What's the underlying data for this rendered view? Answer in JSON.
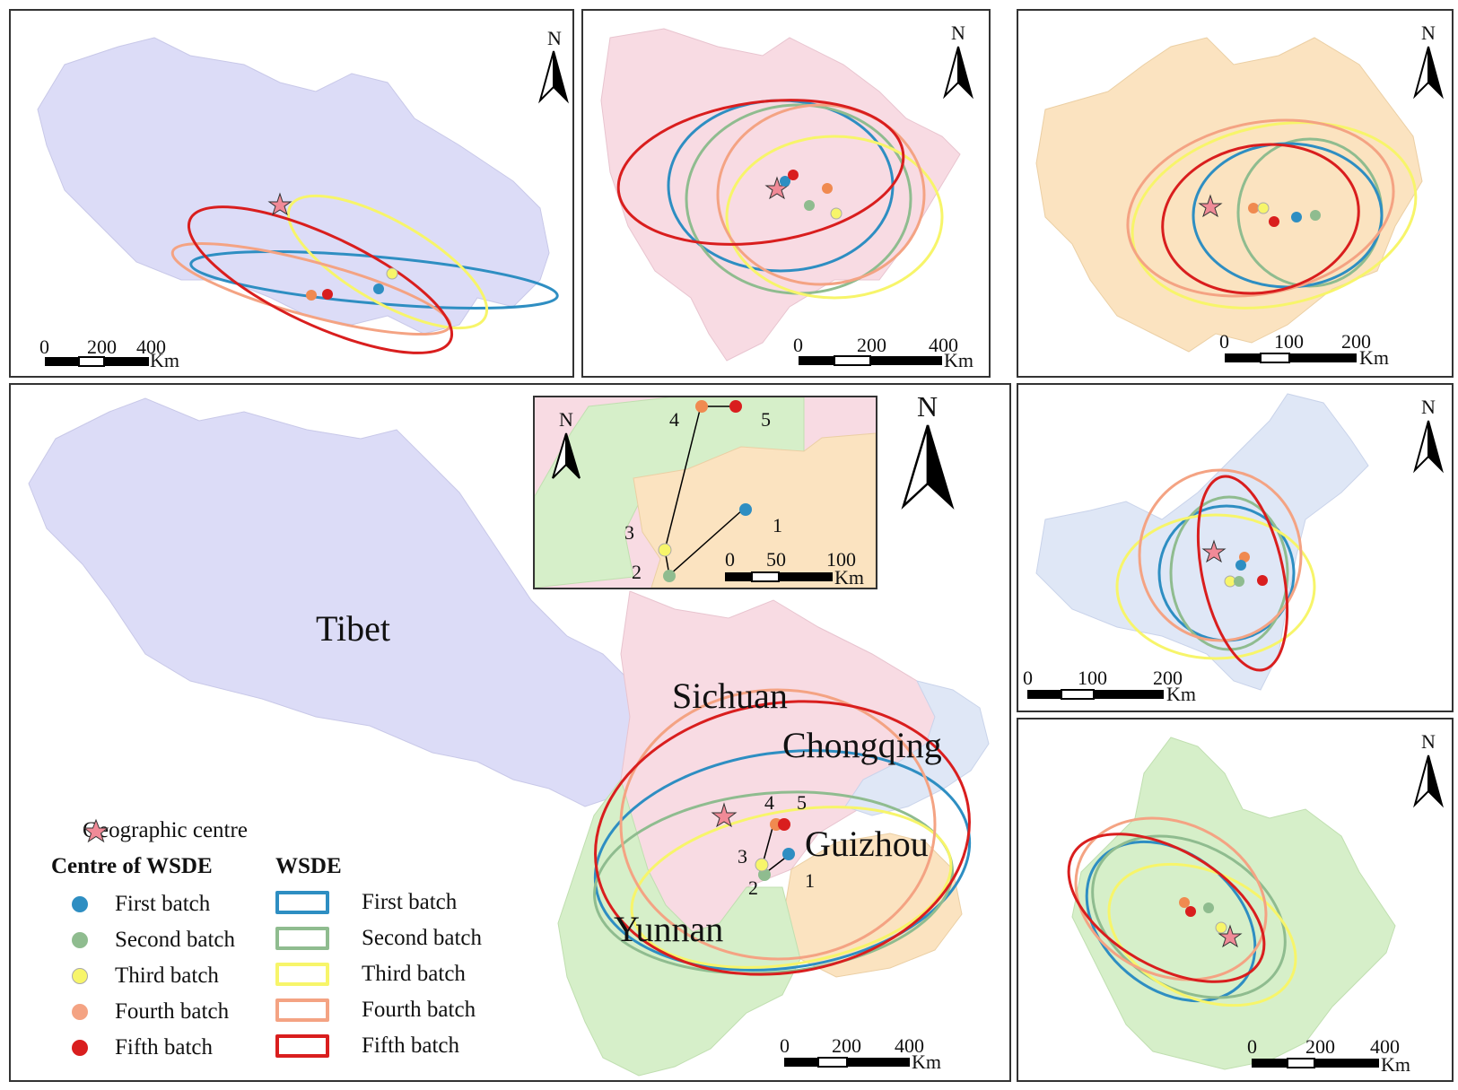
{
  "colors": {
    "first": "#2e8ec2",
    "second": "#8fbc8f",
    "third": "#f7f56a",
    "fourth": "#f4a383",
    "fifth": "#d91e1e",
    "star": "#f08a97",
    "tibet": "#dcdcf7",
    "sichuan": "#f8dbe3",
    "guizhou": "#fbe3c0",
    "chongqing": "#dfe7f6",
    "yunnan": "#d6efc9"
  },
  "icons": {
    "north_arrow": "north-arrow-icon",
    "centre": "star-icon"
  },
  "panels": {
    "tibet": {
      "north": "N",
      "scale": {
        "ticks": [
          "0",
          "200",
          "400"
        ],
        "unit": "Km"
      }
    },
    "sichuan": {
      "north": "N",
      "scale": {
        "ticks": [
          "0",
          "200",
          "400"
        ],
        "unit": "Km"
      }
    },
    "guizhou": {
      "north": "N",
      "scale": {
        "ticks": [
          "0",
          "100",
          "200"
        ],
        "unit": "Km"
      }
    },
    "chongqing": {
      "north": "N",
      "scale": {
        "ticks": [
          "0",
          "100",
          "200"
        ],
        "unit": "Km"
      }
    },
    "yunnan": {
      "north": "N",
      "scale": {
        "ticks": [
          "0",
          "200",
          "400"
        ],
        "unit": "Km"
      }
    },
    "main": {
      "north": "N",
      "scale": {
        "ticks": [
          "0",
          "200",
          "400"
        ],
        "unit": "Km"
      },
      "regions": [
        "Tibet",
        "Sichuan",
        "Chongqing",
        "Guizhou",
        "Yunnan"
      ],
      "path_labels": [
        "1",
        "2",
        "3",
        "4",
        "5"
      ]
    },
    "inset": {
      "north": "N",
      "scale": {
        "ticks": [
          "0",
          "50",
          "100"
        ],
        "unit": "Km"
      },
      "path_labels": [
        "1",
        "2",
        "3",
        "4",
        "5"
      ]
    }
  },
  "legend": {
    "geo_centre": "Geographic centre",
    "centre_header": "Centre of WSDE",
    "wsde_header": "WSDE",
    "batches": [
      "First batch",
      "Second batch",
      "Third batch",
      "Fourth batch",
      "Fifth batch"
    ]
  }
}
